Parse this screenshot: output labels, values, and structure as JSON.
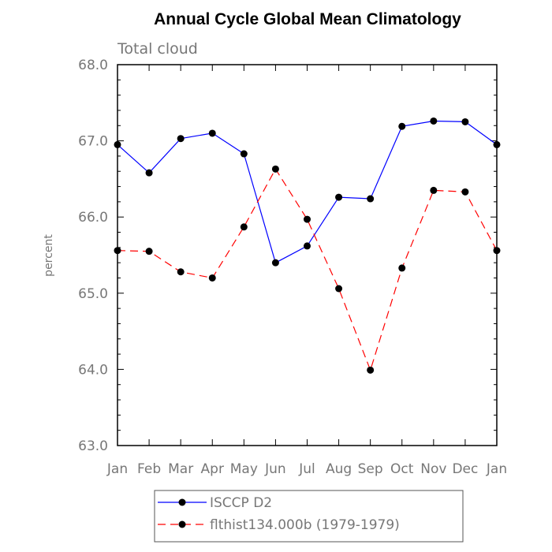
{
  "chart_data": {
    "type": "line",
    "title": "Annual Cycle Global Mean Climatology",
    "subtitle": "Total cloud",
    "ylabel": "percent",
    "xlabel": "",
    "categories": [
      "Jan",
      "Feb",
      "Mar",
      "Apr",
      "May",
      "Jun",
      "Jul",
      "Aug",
      "Sep",
      "Oct",
      "Nov",
      "Dec",
      "Jan"
    ],
    "ylim": [
      63.0,
      68.0
    ],
    "yticks": [
      "63.0",
      "64.0",
      "65.0",
      "66.0",
      "67.0",
      "68.0"
    ],
    "series": [
      {
        "name": "ISCCP D2",
        "color": "#0000ff",
        "dash": "solid",
        "values": [
          66.95,
          66.58,
          67.03,
          67.1,
          66.83,
          65.4,
          65.62,
          66.26,
          66.24,
          67.19,
          67.26,
          67.25,
          66.95
        ]
      },
      {
        "name": "flthist134.000b (1979-1979)",
        "color": "#ff0000",
        "dash": "dashed",
        "values": [
          65.56,
          65.55,
          65.28,
          65.2,
          65.87,
          66.63,
          65.97,
          65.06,
          63.99,
          65.33,
          66.35,
          66.33,
          65.56
        ]
      }
    ],
    "legend_position": "bottom"
  }
}
